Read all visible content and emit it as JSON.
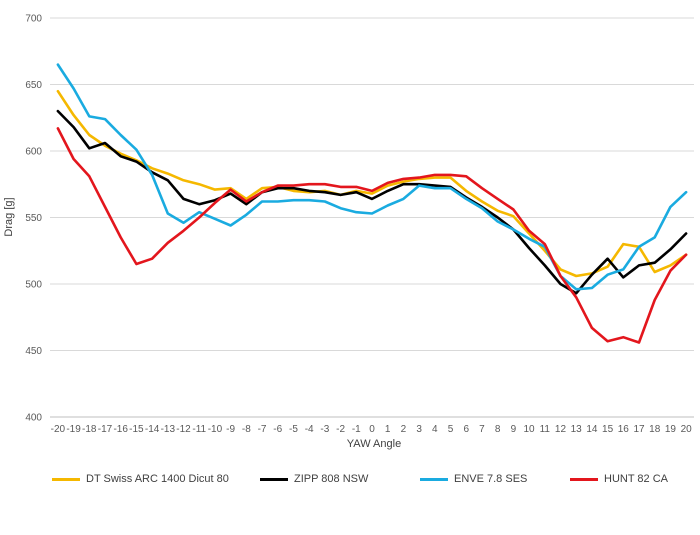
{
  "chart_data": {
    "type": "line",
    "x": [
      -20,
      -19,
      -18,
      -17,
      -16,
      -15,
      -14,
      -13,
      -12,
      -11,
      -10,
      -9,
      -8,
      -7,
      -6,
      -5,
      -4,
      -3,
      -2,
      -1,
      0,
      1,
      2,
      3,
      4,
      5,
      6,
      7,
      8,
      9,
      10,
      11,
      12,
      13,
      14,
      15,
      16,
      17,
      18,
      19,
      20
    ],
    "xlabel": "YAW Angle",
    "ylabel": "Drag [g]",
    "ylim": [
      400,
      700
    ],
    "yticks": [
      400,
      450,
      500,
      550,
      600,
      650,
      700
    ],
    "grid": "horizontal",
    "legend_position": "bottom",
    "series": [
      {
        "name": "DT Swiss ARC 1400 Dicut 80",
        "color": "#F5B800",
        "values": [
          645,
          627,
          612,
          604,
          598,
          593,
          587,
          583,
          578,
          575,
          571,
          572,
          564,
          572,
          573,
          570,
          569,
          570,
          567,
          570,
          568,
          574,
          577,
          579,
          580,
          580,
          570,
          562,
          555,
          551,
          538,
          525,
          511,
          506,
          508,
          513,
          530,
          528,
          509,
          514,
          522
        ]
      },
      {
        "name": "ZIPP 808 NSW",
        "color": "#000000",
        "values": [
          630,
          618,
          602,
          606,
          596,
          592,
          584,
          578,
          564,
          560,
          563,
          568,
          560,
          569,
          572,
          572,
          570,
          569,
          567,
          569,
          564,
          570,
          575,
          575,
          574,
          573,
          565,
          558,
          550,
          541,
          527,
          514,
          500,
          493,
          507,
          519,
          505,
          514,
          516,
          526,
          538
        ]
      },
      {
        "name": "ENVE 7.8 SES",
        "color": "#1AABE0",
        "values": [
          665,
          647,
          626,
          624,
          612,
          601,
          582,
          553,
          546,
          554,
          549,
          544,
          552,
          562,
          562,
          563,
          563,
          562,
          557,
          554,
          553,
          559,
          564,
          574,
          572,
          572,
          564,
          557,
          547,
          541,
          534,
          528,
          506,
          496,
          497,
          507,
          511,
          528,
          535,
          558,
          569
        ]
      },
      {
        "name": "HUNT 82 CA",
        "color": "#E3161D",
        "values": [
          617,
          594,
          581,
          558,
          535,
          515,
          519,
          531,
          540,
          550,
          561,
          571,
          562,
          569,
          574,
          574,
          575,
          575,
          573,
          573,
          570,
          576,
          579,
          580,
          582,
          582,
          581,
          572,
          564,
          556,
          540,
          530,
          506,
          490,
          467,
          457,
          460,
          456,
          488,
          510,
          522
        ]
      }
    ]
  }
}
